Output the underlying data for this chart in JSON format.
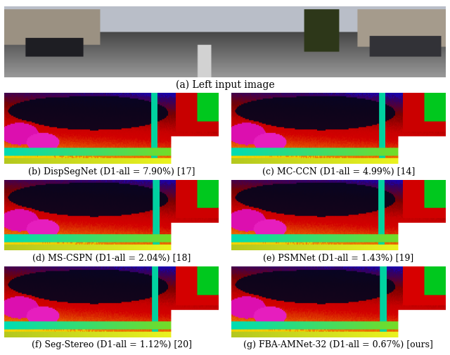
{
  "bg_color": "#ffffff",
  "text_color": "#000000",
  "top_label": "(a) Left input image",
  "captions": [
    "(b) DispSegNet (D1-all = 7.90%) [17]",
    "(c) MC-CCN (D1-all = 4.99%) [14]",
    "(d) MS-CSPN (D1-all = 2.04%) [18]",
    "(e) PSMNet (D1-all = 1.43%) [19]",
    "(f) Seg-Stereo (D1-all = 1.12%) [20]",
    "(g) FBA-AMNet-32 (D1-all = 0.67%) [ours]"
  ],
  "caption_fontsize": 9,
  "figsize": [
    6.4,
    5.06
  ],
  "dpi": 100
}
